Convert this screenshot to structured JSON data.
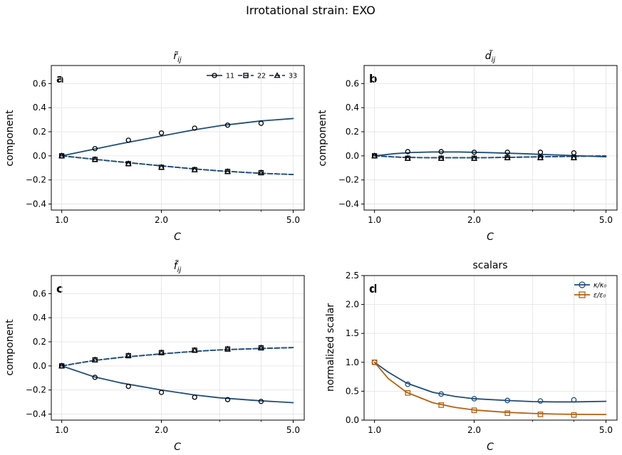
{
  "figure": {
    "suptitle": "Irrotational strain: EXO",
    "colors": {
      "line": "#1f4e79",
      "kappa": "#1f4e79",
      "eps": "#b8600e",
      "marker": "#000000",
      "grid": "#e3e3e3"
    }
  },
  "chart_data": [
    {
      "type": "line",
      "panel": "a",
      "title": "r̃",
      "title_sub": "ij",
      "xlabel": "C",
      "ylabel": "component",
      "xscale": "log",
      "xlim": [
        0.93,
        5.4
      ],
      "ylim": [
        -0.45,
        0.75
      ],
      "xticks": [
        1.0,
        2.0,
        5.0
      ],
      "xtick_labels": [
        "1.0",
        "2.0",
        "5.0"
      ],
      "yticks": [
        -0.4,
        -0.2,
        0.0,
        0.2,
        0.4,
        0.6
      ],
      "ytick_labels": [
        "−0.4",
        "−0.2",
        "0.0",
        "0.2",
        "0.4",
        "0.6"
      ],
      "grid": true,
      "legend": {
        "placement": "top-right",
        "entries": [
          "11",
          "22",
          "33"
        ]
      },
      "series": [
        {
          "name": "11",
          "style": "solid",
          "marker": "circle",
          "curve_x": [
            1.0,
            1.25,
            1.5,
            2.0,
            2.5,
            3.0,
            4.0,
            5.0
          ],
          "curve_y": [
            0.0,
            0.055,
            0.1,
            0.165,
            0.215,
            0.25,
            0.29,
            0.31
          ],
          "marker_x": [
            1.0,
            1.26,
            1.59,
            2.0,
            2.52,
            3.17,
            4.0
          ],
          "marker_y": [
            0.0,
            0.06,
            0.13,
            0.19,
            0.23,
            0.255,
            0.27
          ]
        },
        {
          "name": "22",
          "style": "dashed",
          "marker": "square",
          "curve_x": [
            1.0,
            1.25,
            1.5,
            2.0,
            2.5,
            3.0,
            4.0,
            5.0
          ],
          "curve_y": [
            0.0,
            -0.028,
            -0.05,
            -0.083,
            -0.108,
            -0.125,
            -0.145,
            -0.155
          ],
          "marker_x": [
            1.0,
            1.26,
            1.59,
            2.0,
            2.52,
            3.17,
            4.0
          ],
          "marker_y": [
            0.0,
            -0.03,
            -0.065,
            -0.095,
            -0.115,
            -0.13,
            -0.14
          ]
        },
        {
          "name": "33",
          "style": "dashed",
          "marker": "triangle",
          "curve_x": [
            1.0,
            1.25,
            1.5,
            2.0,
            2.5,
            3.0,
            4.0,
            5.0
          ],
          "curve_y": [
            0.0,
            -0.028,
            -0.05,
            -0.083,
            -0.108,
            -0.125,
            -0.145,
            -0.155
          ],
          "marker_x": [
            1.0,
            1.26,
            1.59,
            2.0,
            2.52,
            3.17,
            4.0
          ],
          "marker_y": [
            0.0,
            -0.03,
            -0.065,
            -0.095,
            -0.115,
            -0.13,
            -0.14
          ]
        }
      ]
    },
    {
      "type": "line",
      "panel": "b",
      "title": "d̃",
      "title_sub": "ij",
      "xlabel": "C",
      "ylabel": "component",
      "xscale": "log",
      "xlim": [
        0.93,
        5.4
      ],
      "ylim": [
        -0.45,
        0.75
      ],
      "xticks": [
        1.0,
        2.0,
        5.0
      ],
      "xtick_labels": [
        "1.0",
        "2.0",
        "5.0"
      ],
      "yticks": [
        -0.4,
        -0.2,
        0.0,
        0.2,
        0.4,
        0.6
      ],
      "ytick_labels": [
        "−0.4",
        "−0.2",
        "0.0",
        "0.2",
        "0.4",
        "0.6"
      ],
      "grid": true,
      "series": [
        {
          "name": "11",
          "style": "solid",
          "marker": "circle",
          "curve_x": [
            1.0,
            1.15,
            1.3,
            1.5,
            1.8,
            2.2,
            2.8,
            3.5,
            4.2,
            5.0
          ],
          "curve_y": [
            0.0,
            0.018,
            0.028,
            0.032,
            0.032,
            0.027,
            0.018,
            0.008,
            0.0,
            -0.008
          ],
          "marker_x": [
            1.0,
            1.26,
            1.59,
            2.0,
            2.52,
            3.17,
            4.0
          ],
          "marker_y": [
            0.0,
            0.035,
            0.035,
            0.03,
            0.03,
            0.03,
            0.025
          ]
        },
        {
          "name": "22",
          "style": "dashed",
          "marker": "square",
          "curve_x": [
            1.0,
            1.2,
            1.5,
            2.0,
            2.5,
            3.0,
            4.0,
            5.0
          ],
          "curve_y": [
            0.0,
            -0.012,
            -0.016,
            -0.016,
            -0.013,
            -0.009,
            -0.004,
            0.0
          ],
          "marker_x": [
            1.0,
            1.26,
            1.59,
            2.0,
            2.52,
            3.17,
            4.0
          ],
          "marker_y": [
            0.0,
            -0.02,
            -0.02,
            -0.02,
            -0.015,
            -0.015,
            -0.015
          ]
        },
        {
          "name": "33",
          "style": "dashed",
          "marker": "triangle",
          "curve_x": [
            1.0,
            1.2,
            1.5,
            2.0,
            2.5,
            3.0,
            4.0,
            5.0
          ],
          "curve_y": [
            0.0,
            -0.012,
            -0.016,
            -0.016,
            -0.013,
            -0.009,
            -0.004,
            0.0
          ],
          "marker_x": [
            1.0,
            1.26,
            1.59,
            2.0,
            2.52,
            3.17,
            4.0
          ],
          "marker_y": [
            0.0,
            -0.02,
            -0.02,
            -0.02,
            -0.015,
            -0.015,
            -0.015
          ]
        }
      ]
    },
    {
      "type": "line",
      "panel": "c",
      "title": "f̃",
      "title_sub": "ij",
      "xlabel": "C",
      "ylabel": "component",
      "xscale": "log",
      "xlim": [
        0.93,
        5.4
      ],
      "ylim": [
        -0.45,
        0.75
      ],
      "xticks": [
        1.0,
        2.0,
        5.0
      ],
      "xtick_labels": [
        "1.0",
        "2.0",
        "5.0"
      ],
      "yticks": [
        -0.4,
        -0.2,
        0.0,
        0.2,
        0.4,
        0.6
      ],
      "ytick_labels": [
        "−0.4",
        "−0.2",
        "0.0",
        "0.2",
        "0.4",
        "0.6"
      ],
      "grid": true,
      "series": [
        {
          "name": "11",
          "style": "solid",
          "marker": "circle",
          "curve_x": [
            1.0,
            1.25,
            1.5,
            2.0,
            2.5,
            3.0,
            4.0,
            5.0
          ],
          "curve_y": [
            0.0,
            -0.09,
            -0.14,
            -0.2,
            -0.24,
            -0.265,
            -0.29,
            -0.305
          ],
          "marker_x": [
            1.0,
            1.26,
            1.59,
            2.0,
            2.52,
            3.17,
            4.0
          ],
          "marker_y": [
            0.0,
            -0.095,
            -0.17,
            -0.22,
            -0.26,
            -0.28,
            -0.295
          ]
        },
        {
          "name": "22",
          "style": "dashed",
          "marker": "square",
          "curve_x": [
            1.0,
            1.25,
            1.5,
            2.0,
            2.5,
            3.0,
            4.0,
            5.0
          ],
          "curve_y": [
            0.0,
            0.045,
            0.07,
            0.1,
            0.12,
            0.133,
            0.145,
            0.152
          ],
          "marker_x": [
            1.0,
            1.26,
            1.59,
            2.0,
            2.52,
            3.17,
            4.0
          ],
          "marker_y": [
            0.0,
            0.05,
            0.085,
            0.11,
            0.13,
            0.14,
            0.15
          ]
        },
        {
          "name": "33",
          "style": "dashed",
          "marker": "triangle",
          "curve_x": [
            1.0,
            1.25,
            1.5,
            2.0,
            2.5,
            3.0,
            4.0,
            5.0
          ],
          "curve_y": [
            0.0,
            0.045,
            0.07,
            0.1,
            0.12,
            0.133,
            0.145,
            0.152
          ],
          "marker_x": [
            1.0,
            1.26,
            1.59,
            2.0,
            2.52,
            3.17,
            4.0
          ],
          "marker_y": [
            0.0,
            0.05,
            0.085,
            0.11,
            0.13,
            0.14,
            0.15
          ]
        }
      ]
    },
    {
      "type": "line",
      "panel": "d",
      "title": "scalars",
      "title_sub": "",
      "xlabel": "C",
      "ylabel": "normalized scalar",
      "xscale": "log",
      "xlim": [
        0.93,
        5.4
      ],
      "ylim": [
        0.0,
        2.5
      ],
      "xticks": [
        1.0,
        2.0,
        5.0
      ],
      "xtick_labels": [
        "1.0",
        "2.0",
        "5.0"
      ],
      "yticks": [
        0.0,
        0.5,
        1.0,
        1.5,
        2.0,
        2.5
      ],
      "ytick_labels": [
        "0.0",
        "0.5",
        "1.0",
        "1.5",
        "2.0",
        "2.5"
      ],
      "grid": true,
      "legend": {
        "placement": "top-right",
        "entries": [
          "κ/κ₀",
          "ε/ε₀"
        ]
      },
      "series": [
        {
          "name": "κ/κ₀",
          "style": "solid",
          "marker": "circle",
          "color": "#1f4e79",
          "curve_x": [
            1.0,
            1.1,
            1.25,
            1.5,
            1.75,
            2.0,
            2.5,
            3.0,
            3.5,
            4.0,
            5.0
          ],
          "curve_y": [
            1.0,
            0.83,
            0.64,
            0.48,
            0.41,
            0.37,
            0.34,
            0.32,
            0.315,
            0.315,
            0.325
          ],
          "marker_x": [
            1.0,
            1.26,
            1.59,
            2.0,
            2.52,
            3.17,
            4.0
          ],
          "marker_y": [
            1.0,
            0.62,
            0.45,
            0.37,
            0.34,
            0.33,
            0.35
          ]
        },
        {
          "name": "ε/ε₀",
          "style": "solid",
          "marker": "square",
          "color": "#b8600e",
          "curve_x": [
            1.0,
            1.1,
            1.25,
            1.5,
            1.75,
            2.0,
            2.5,
            3.0,
            3.5,
            4.0,
            5.0
          ],
          "curve_y": [
            1.0,
            0.72,
            0.48,
            0.3,
            0.22,
            0.175,
            0.135,
            0.115,
            0.105,
            0.1,
            0.097
          ],
          "marker_x": [
            1.0,
            1.26,
            1.59,
            2.0,
            2.52,
            3.17,
            4.0
          ],
          "marker_y": [
            1.0,
            0.47,
            0.26,
            0.17,
            0.12,
            0.1,
            0.09
          ]
        }
      ]
    }
  ]
}
